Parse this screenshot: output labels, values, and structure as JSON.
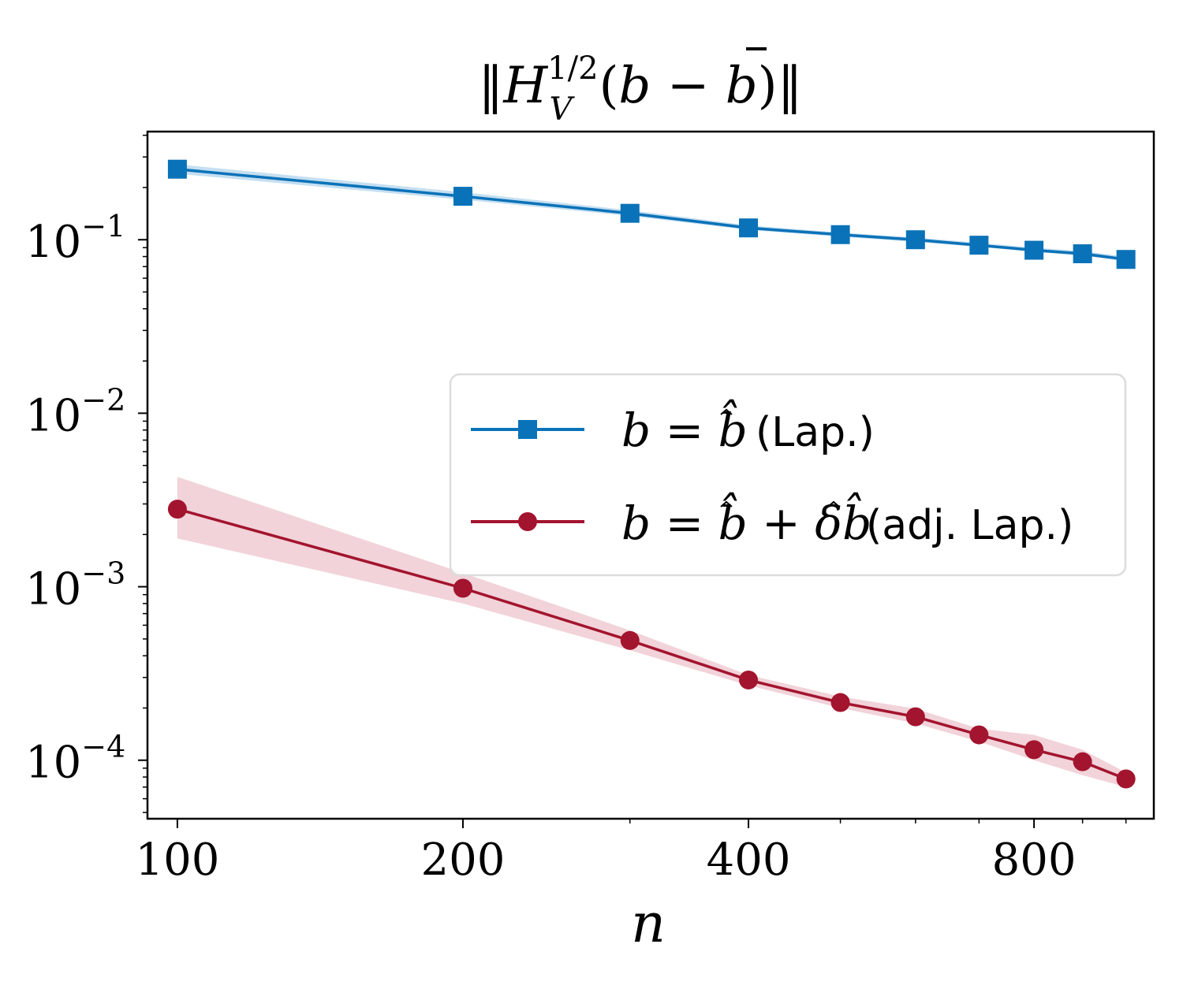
{
  "chart_data": {
    "type": "line",
    "title": "‖H_V^{1/2}(b − b̄)‖",
    "title_parts": {
      "norm_left": "‖",
      "H": "H",
      "sup": "1/2",
      "sub": "V",
      "paren_open": "(",
      "b": "b",
      "minus": " − ",
      "bbar": "b",
      "paren_close": ")",
      "norm_right": "‖"
    },
    "xlabel": "n",
    "ylabel": "",
    "xscale": "log",
    "yscale": "log",
    "xlim": [
      93,
      1070
    ],
    "ylim": [
      4.6e-05,
      0.42
    ],
    "xticks": [
      {
        "value": 100,
        "label": "100"
      },
      {
        "value": 200,
        "label": "200"
      },
      {
        "value": 400,
        "label": "400"
      },
      {
        "value": 800,
        "label": "800"
      }
    ],
    "yticks": [
      {
        "value": 0.1,
        "base": "10",
        "exp": "−1"
      },
      {
        "value": 0.01,
        "base": "10",
        "exp": "−2"
      },
      {
        "value": 0.001,
        "base": "10",
        "exp": "−3"
      },
      {
        "value": 0.0001,
        "base": "10",
        "exp": "−4"
      }
    ],
    "x": [
      100,
      200,
      300,
      400,
      500,
      600,
      700,
      800,
      900,
      1000
    ],
    "series": [
      {
        "name": "b = b̂ (Lap.)",
        "legend_math": "b = b̂",
        "legend_text": "(Lap.)",
        "color": "#0a72b8",
        "band_color": "#9ecae8",
        "marker": "square",
        "values": [
          0.255,
          0.178,
          0.142,
          0.117,
          0.107,
          0.1,
          0.093,
          0.087,
          0.083,
          0.077
        ],
        "lower": [
          0.24,
          0.17,
          0.137,
          0.114,
          0.104,
          0.097,
          0.091,
          0.085,
          0.081,
          0.075
        ],
        "upper": [
          0.272,
          0.188,
          0.148,
          0.121,
          0.11,
          0.103,
          0.096,
          0.09,
          0.086,
          0.08
        ]
      },
      {
        "name": "b = b̂ + δb̂ (adj. Lap.)",
        "legend_math": "b = b̂ + δb̂",
        "legend_text": "(adj.  Lap.)",
        "color": "#a3142e",
        "band_color": "#e7b5bf",
        "marker": "circle",
        "values": [
          0.0028,
          0.00098,
          0.00049,
          0.00029,
          0.000215,
          0.000178,
          0.00014,
          0.000115,
          9.8e-05,
          7.8e-05
        ],
        "lower": [
          0.0019,
          0.0008,
          0.00043,
          0.00027,
          0.0002,
          0.000163,
          0.000128,
          0.0001,
          8.2e-05,
          7e-05
        ],
        "upper": [
          0.0043,
          0.0012,
          0.00056,
          0.00031,
          0.000233,
          0.000198,
          0.000152,
          0.00014,
          0.000115,
          8.5e-05
        ]
      }
    ],
    "legend_position": "center-right",
    "grid": false
  }
}
